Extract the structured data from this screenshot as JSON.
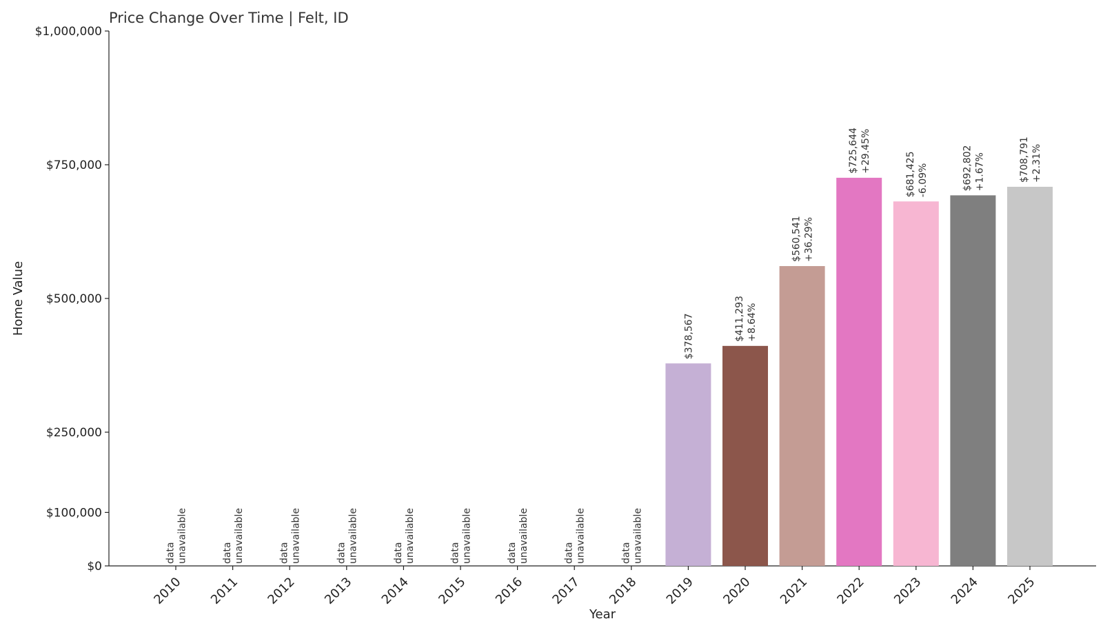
{
  "chart_data": {
    "type": "bar",
    "title": "Price Change Over Time | Felt, ID",
    "xlabel": "Year",
    "ylabel": "Home Value",
    "ylim": [
      0,
      1000000
    ],
    "yticks": [
      0,
      100000,
      250000,
      500000,
      750000,
      1000000
    ],
    "ytick_labels": [
      "$0",
      "$100,000",
      "$250,000",
      "$500,000",
      "$750,000",
      "$1,000,000"
    ],
    "categories": [
      "2010",
      "2011",
      "2012",
      "2013",
      "2014",
      "2015",
      "2016",
      "2017",
      "2018",
      "2019",
      "2020",
      "2021",
      "2022",
      "2023",
      "2024",
      "2025"
    ],
    "values": [
      null,
      null,
      null,
      null,
      null,
      null,
      null,
      null,
      null,
      378567,
      411293,
      560541,
      725644,
      681425,
      692802,
      708791
    ],
    "value_labels": [
      "",
      "",
      "",
      "",
      "",
      "",
      "",
      "",
      "",
      "$378,567",
      "$411,293",
      "$560,541",
      "$725,644",
      "$681,425",
      "$692,802",
      "$708,791"
    ],
    "change_labels": [
      "",
      "",
      "",
      "",
      "",
      "",
      "",
      "",
      "",
      "",
      "+8.64%",
      "+36.29%",
      "+29.45%",
      "-6.09%",
      "+1.67%",
      "+2.31%"
    ],
    "unavailable_label": [
      "data",
      "unavailable"
    ],
    "colors": [
      "#1f77b4",
      "#ff7f0e",
      "#2ca02c",
      "#d62728",
      "#9467bd",
      "#8c564b",
      "#e377c2",
      "#7f7f7f",
      "#bcbd22",
      "#c5b0d5",
      "#8c564b",
      "#c49c94",
      "#e377c2",
      "#f7b6d2",
      "#7f7f7f",
      "#c7c7c7"
    ],
    "grid": false
  }
}
